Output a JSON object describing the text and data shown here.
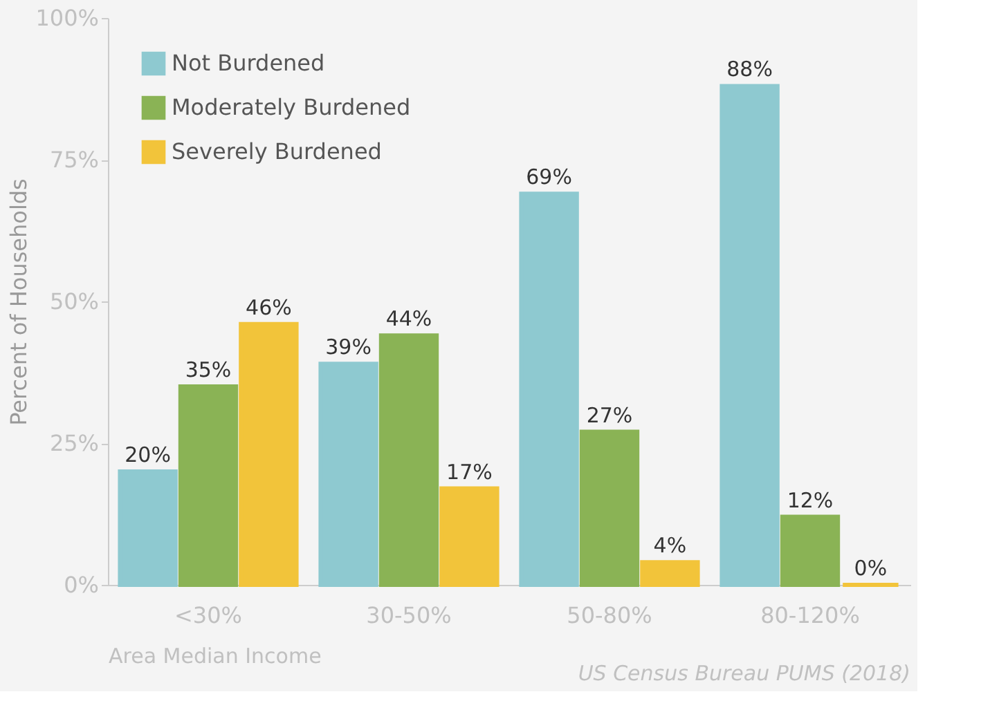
{
  "chart_data": {
    "type": "bar",
    "ylabel": "Percent of Households",
    "xlabel": "Area Median Income",
    "annotations": [
      "US Census Bureau PUMS (2018)"
    ],
    "categories": [
      "<30%",
      "30-50%",
      "50-80%",
      "80-120%"
    ],
    "series": [
      {
        "name": "Not Burdened",
        "color": "#8ec9d0",
        "values": [
          20,
          39,
          69,
          88
        ],
        "value_labels": [
          "20%",
          "39%",
          "69%",
          "88%"
        ]
      },
      {
        "name": "Moderately Burdened",
        "color": "#8ab355",
        "values": [
          35,
          44,
          27,
          12
        ],
        "value_labels": [
          "35%",
          "44%",
          "27%",
          "12%"
        ]
      },
      {
        "name": "Severely Burdened",
        "color": "#f2c43a",
        "values": [
          46,
          17,
          4,
          0
        ],
        "value_labels": [
          "46%",
          "17%",
          "4%",
          "0%"
        ]
      }
    ],
    "ylim": [
      0,
      100
    ],
    "yticks": [
      {
        "value": 0,
        "label": "0%"
      },
      {
        "value": 25,
        "label": "25%"
      },
      {
        "value": 50,
        "label": "50%"
      },
      {
        "value": 75,
        "label": "75%"
      },
      {
        "value": 100,
        "label": "100%"
      }
    ],
    "grid": false,
    "legend": "top left"
  }
}
